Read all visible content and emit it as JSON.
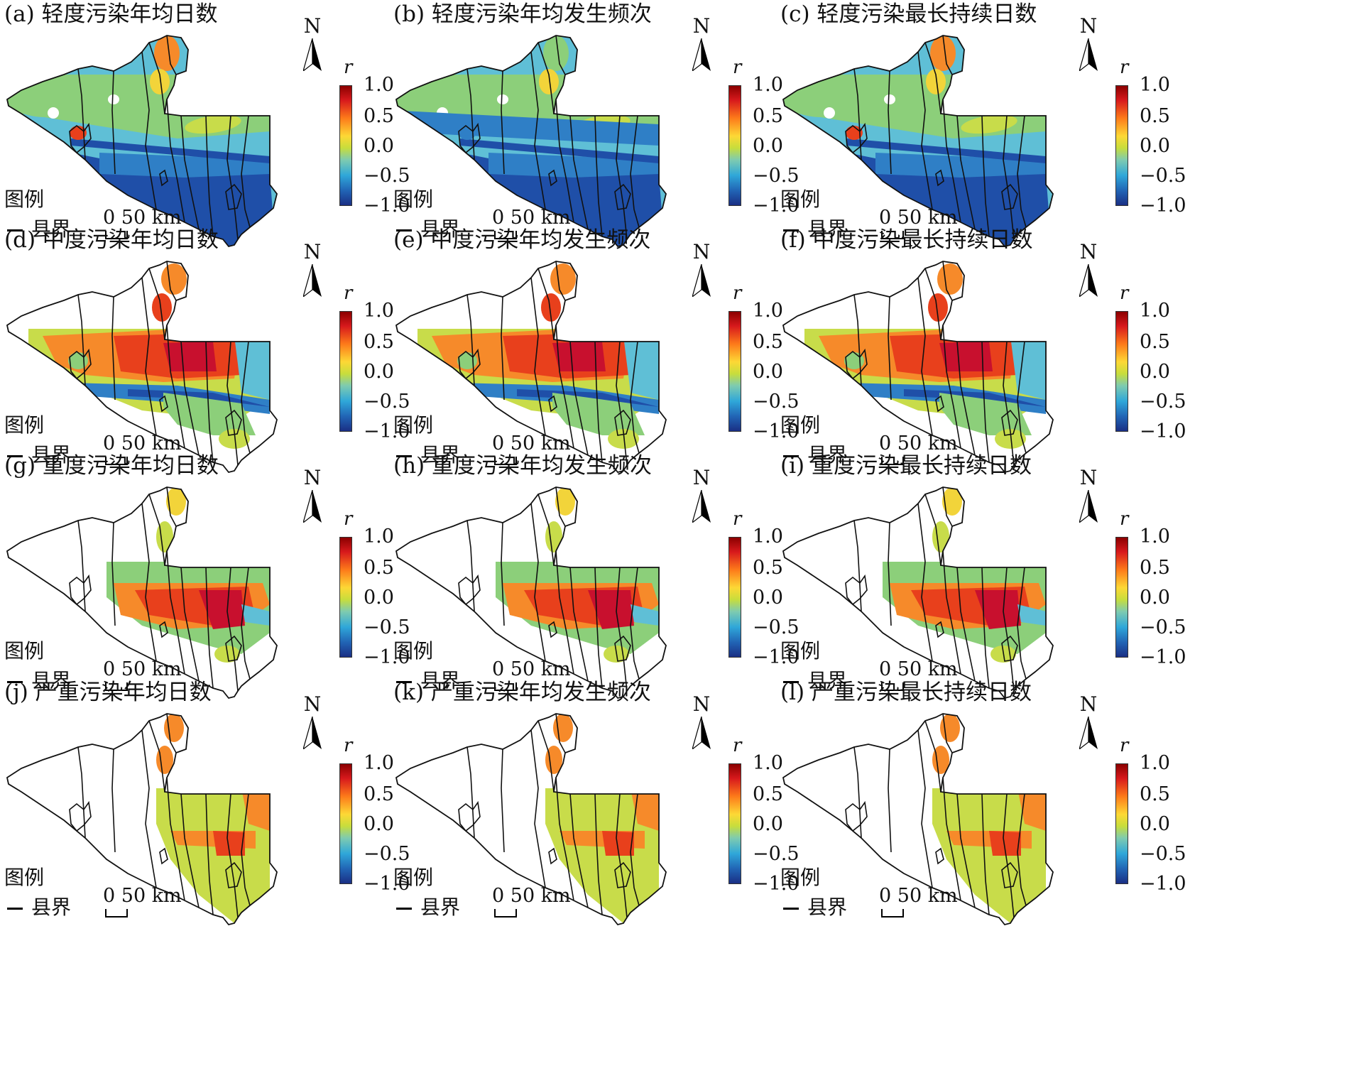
{
  "panels": [
    {
      "title": "(a) 轻度污染年均日数",
      "pattern": "light"
    },
    {
      "title": "(b) 轻度污染年均发生频次",
      "pattern": "light2"
    },
    {
      "title": "(c) 轻度污染最长持续日数",
      "pattern": "light"
    },
    {
      "title": "(d) 中度污染年均日数",
      "pattern": "moderate"
    },
    {
      "title": "(e) 中度污染年均发生频次",
      "pattern": "moderate"
    },
    {
      "title": "(f) 中度污染最长持续日数",
      "pattern": "moderate"
    },
    {
      "title": "(g) 重度污染年均日数",
      "pattern": "heavy"
    },
    {
      "title": "(h) 重度污染年均发生频次",
      "pattern": "heavy"
    },
    {
      "title": "(i) 重度污染最长持续日数",
      "pattern": "heavy"
    },
    {
      "title": "(j) 严重污染年均日数",
      "pattern": "severe"
    },
    {
      "title": "(k) 严重污染年均发生频次",
      "pattern": "severe"
    },
    {
      "title": "(l) 严重污染最长持续日数",
      "pattern": "severe"
    }
  ],
  "north_label": "N",
  "colorbar": {
    "label": "r",
    "ticks": [
      "1.0",
      "0.5",
      "0.0",
      "−0.5",
      "−1.0"
    ],
    "colors": [
      "#8b0000",
      "#d7191c",
      "#fd7a1a",
      "#fdd835",
      "#c7dd3c",
      "#7ecbb0",
      "#2fa7d9",
      "#2163b4",
      "#1a2f84"
    ]
  },
  "legend": {
    "title": "图例",
    "line_label": "县界"
  },
  "scale": {
    "label": "0 50 km"
  },
  "map_palette": {
    "dark_red": "#c8102e",
    "red": "#e8401c",
    "orange": "#f68a2a",
    "yellow": "#f2d43a",
    "yellow_green": "#c8dc4a",
    "green": "#8ccf7a",
    "cyan": "#5fbfd6",
    "blue": "#2f7fc6",
    "dark_blue": "#1f4fa8",
    "white": "#ffffff",
    "boundary": "#111111"
  }
}
